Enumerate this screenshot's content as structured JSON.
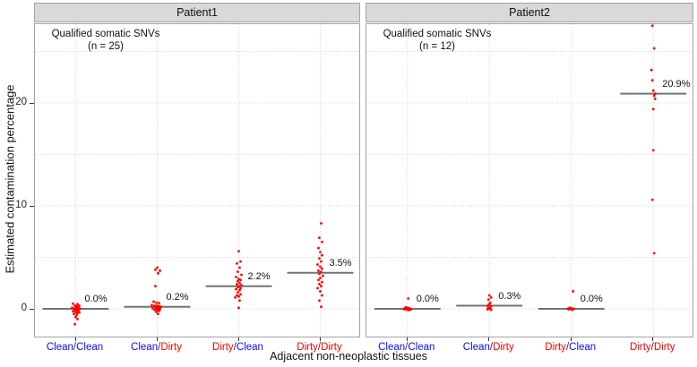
{
  "chart_data": {
    "type": "scatter",
    "xlabel": "Adjacent non-neoplastic tissues",
    "ylabel": "Estimated contamination percentage",
    "yticks": [
      0,
      10,
      20
    ],
    "yticks_minor": [
      5,
      15,
      25
    ],
    "ylim": [
      -2.8,
      27.7
    ],
    "grid": "dotted",
    "point_color": "#ff0000",
    "mean_line_color": "#737373",
    "slash_color": "#333333",
    "label_colors": {
      "Clean": "#0909ff",
      "Dirty": "#ff0000"
    },
    "categories": [
      "Clean/Clean",
      "Clean/Dirty",
      "Dirty/Clean",
      "Dirty/Dirty"
    ],
    "facets": [
      {
        "title": "Patient1",
        "annotation": [
          "Qualified somatic SNVs",
          "(n = 25)"
        ],
        "groups": [
          {
            "category": "Clean/Clean",
            "mean": 0.0,
            "mean_label": "0.0%",
            "points": [
              [
                -3,
                0.5
              ],
              [
                2,
                0.45
              ],
              [
                4,
                0.3
              ],
              [
                -1,
                0.3
              ],
              [
                1,
                0.2
              ],
              [
                3,
                0.15
              ],
              [
                -4,
                0.1
              ],
              [
                0,
                0.1
              ],
              [
                2,
                0.05
              ],
              [
                -2,
                0
              ],
              [
                5,
                0
              ],
              [
                1,
                -0.1
              ],
              [
                -1,
                -0.15
              ],
              [
                3,
                -0.2
              ],
              [
                0,
                -0.3
              ],
              [
                2,
                -0.4
              ],
              [
                -2,
                -0.5
              ],
              [
                1,
                -0.6
              ],
              [
                4,
                -0.35
              ],
              [
                -3,
                -0.25
              ],
              [
                0,
                -0.8
              ],
              [
                2,
                -1.0
              ],
              [
                -1,
                -1.5
              ],
              [
                1,
                0.25
              ],
              [
                3,
                -0.05
              ]
            ]
          },
          {
            "category": "Clean/Dirty",
            "mean": 0.2,
            "mean_label": "0.2%",
            "points": [
              [
                0,
                4.0
              ],
              [
                -2,
                3.8
              ],
              [
                3,
                3.7
              ],
              [
                1,
                3.45
              ],
              [
                -2,
                2.2
              ],
              [
                -4,
                0.7
              ],
              [
                -1,
                0.6
              ],
              [
                2,
                0.55
              ],
              [
                -6,
                0.35
              ],
              [
                -3,
                0.3
              ],
              [
                0,
                0.3
              ],
              [
                2,
                0.25
              ],
              [
                4,
                0.2
              ],
              [
                -2,
                0.15
              ],
              [
                0,
                0.1
              ],
              [
                3,
                0.1
              ],
              [
                -5,
                0.05
              ],
              [
                -1,
                0
              ],
              [
                1,
                0
              ],
              [
                3,
                -0.05
              ],
              [
                -3,
                -0.1
              ],
              [
                0,
                -0.15
              ],
              [
                2,
                -0.2
              ],
              [
                -1,
                -0.3
              ],
              [
                1,
                -0.5
              ]
            ]
          },
          {
            "category": "Dirty/Clean",
            "mean": 2.2,
            "mean_label": "2.2%",
            "points": [
              [
                0,
                5.6
              ],
              [
                2,
                4.6
              ],
              [
                -2,
                4.4
              ],
              [
                1,
                4.0
              ],
              [
                -1,
                3.6
              ],
              [
                3,
                3.3
              ],
              [
                -3,
                3.1
              ],
              [
                0,
                2.9
              ],
              [
                2,
                2.8
              ],
              [
                -1,
                2.7
              ],
              [
                1,
                2.5
              ],
              [
                -2,
                2.4
              ],
              [
                3,
                2.3
              ],
              [
                0,
                2.2
              ],
              [
                -1,
                2.1
              ],
              [
                2,
                2.0
              ],
              [
                -3,
                1.9
              ],
              [
                1,
                1.8
              ],
              [
                -1,
                1.6
              ],
              [
                2,
                1.4
              ],
              [
                -2,
                1.3
              ],
              [
                0,
                1.2
              ],
              [
                -4,
                1.1
              ],
              [
                1,
                0.8
              ],
              [
                0,
                0.1
              ]
            ]
          },
          {
            "category": "Dirty/Dirty",
            "mean": 3.5,
            "mean_label": "3.5%",
            "points": [
              [
                1,
                8.3
              ],
              [
                -1,
                6.9
              ],
              [
                2,
                6.5
              ],
              [
                -2,
                5.9
              ],
              [
                0,
                5.5
              ],
              [
                2,
                5.2
              ],
              [
                -1,
                4.9
              ],
              [
                1,
                4.6
              ],
              [
                -3,
                4.3
              ],
              [
                0,
                4.1
              ],
              [
                2,
                3.9
              ],
              [
                -2,
                3.7
              ],
              [
                1,
                3.6
              ],
              [
                -1,
                3.4
              ],
              [
                3,
                3.2
              ],
              [
                0,
                3.0
              ],
              [
                -2,
                2.8
              ],
              [
                2,
                2.6
              ],
              [
                -1,
                2.4
              ],
              [
                1,
                2.2
              ],
              [
                -3,
                2.0
              ],
              [
                0,
                1.7
              ],
              [
                2,
                1.3
              ],
              [
                -1,
                0.8
              ],
              [
                1,
                0.2
              ]
            ]
          }
        ]
      },
      {
        "title": "Patient2",
        "annotation": [
          "Qualified somatic SNVs",
          "(n = 12)"
        ],
        "groups": [
          {
            "category": "Clean/Clean",
            "mean": 0.0,
            "mean_label": "0.0%",
            "points": [
              [
                1,
                1.0
              ],
              [
                -2,
                0.15
              ],
              [
                0,
                0.1
              ],
              [
                2,
                0.05
              ],
              [
                -4,
                0
              ],
              [
                -1,
                0
              ],
              [
                1,
                0
              ],
              [
                3,
                0
              ],
              [
                -3,
                -0.05
              ],
              [
                0,
                -0.1
              ],
              [
                2,
                -0.12
              ],
              [
                4,
                -0.05
              ]
            ]
          },
          {
            "category": "Clean/Dirty",
            "mean": 0.3,
            "mean_label": "0.3%",
            "points": [
              [
                0,
                1.3
              ],
              [
                2,
                1.1
              ],
              [
                -1,
                0.9
              ],
              [
                1,
                0.6
              ],
              [
                0,
                0.45
              ],
              [
                -2,
                0.3
              ],
              [
                2,
                0.25
              ],
              [
                -1,
                0.1
              ],
              [
                1,
                0.05
              ],
              [
                0,
                0
              ],
              [
                -2,
                -0.05
              ],
              [
                2,
                -0.1
              ]
            ]
          },
          {
            "category": "Dirty/Clean",
            "mean": 0.0,
            "mean_label": "0.0%",
            "points": [
              [
                2,
                1.7
              ],
              [
                -2,
                0.1
              ],
              [
                0,
                0.05
              ],
              [
                1,
                0
              ],
              [
                -1,
                0
              ],
              [
                3,
                0
              ],
              [
                -3,
                -0.05
              ],
              [
                1,
                -0.1
              ],
              [
                -2,
                0.05
              ],
              [
                2,
                0
              ],
              [
                0,
                -0.05
              ],
              [
                -4,
                0
              ]
            ]
          },
          {
            "category": "Dirty/Dirty",
            "mean": 20.9,
            "mean_label": "20.9%",
            "points": [
              [
                -1,
                27.5
              ],
              [
                1,
                25.3
              ],
              [
                -2,
                23.2
              ],
              [
                -1,
                22.2
              ],
              [
                0,
                21.2
              ],
              [
                2,
                20.9
              ],
              [
                1,
                20.7
              ],
              [
                0,
                19.4
              ],
              [
                0,
                15.4
              ],
              [
                -1,
                10.6
              ],
              [
                1,
                5.4
              ],
              [
                2,
                20.4
              ]
            ]
          }
        ]
      }
    ]
  }
}
